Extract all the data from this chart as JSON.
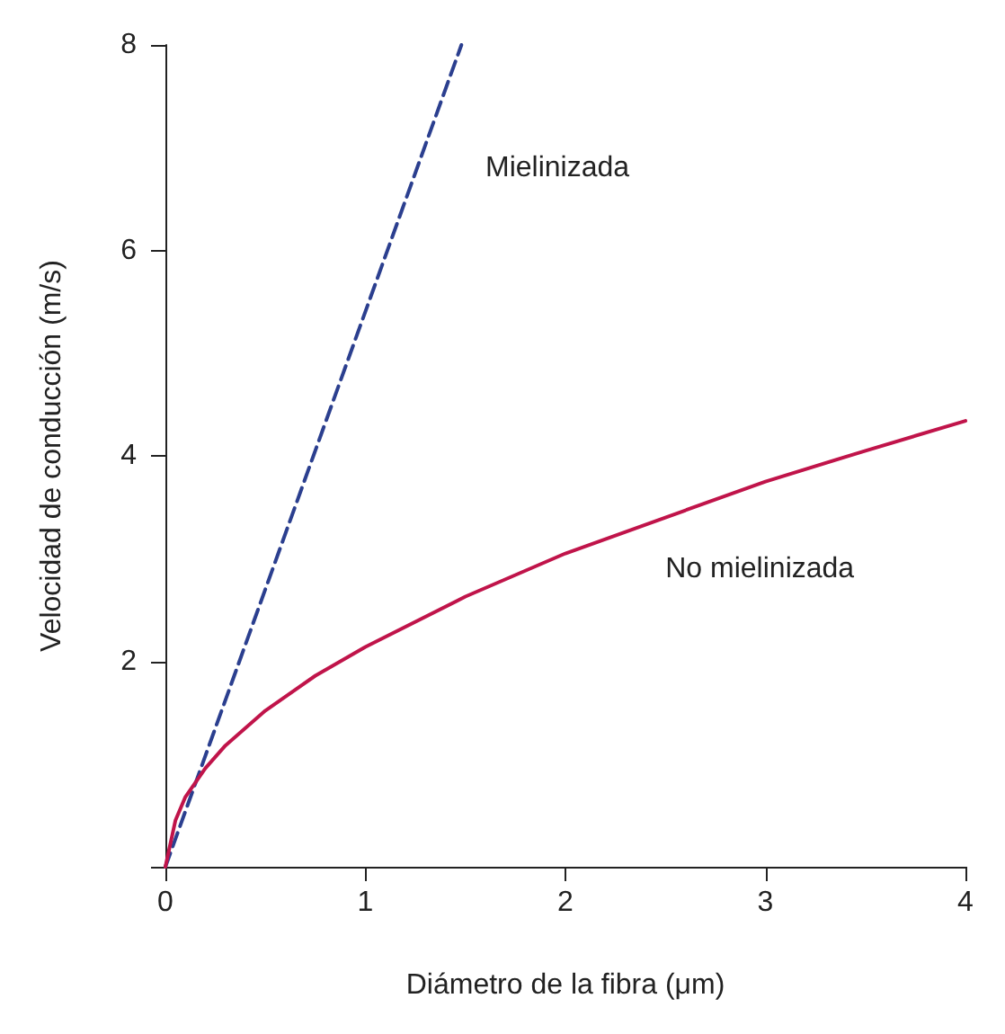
{
  "chart_data": {
    "type": "line",
    "xlabel": "Diámetro de la fibra (μm)",
    "ylabel": "Velocidad de conducción (m/s)",
    "xlim": [
      0,
      4
    ],
    "ylim": [
      0,
      8
    ],
    "xticks": [
      0,
      1,
      2,
      3,
      4
    ],
    "yticks": [
      {
        "value": 0,
        "label": null
      },
      2,
      4,
      6,
      8
    ],
    "grid": false,
    "legend": false,
    "marker": "none",
    "series": [
      {
        "name": "Mielinizada",
        "color": "#2b3f8f",
        "line_style": "dashed",
        "x": [
          0,
          1.48
        ],
        "values": [
          0,
          8
        ]
      },
      {
        "name": "No mielinizada",
        "color": "#c0144a",
        "line_style": "solid",
        "x": [
          0,
          0.05,
          0.1,
          0.2,
          0.3,
          0.5,
          0.75,
          1,
          1.5,
          2,
          2.5,
          3,
          3.5,
          4
        ],
        "values": [
          0,
          0.45,
          0.68,
          0.96,
          1.18,
          1.52,
          1.86,
          2.14,
          2.63,
          3.05,
          3.4,
          3.75,
          4.05,
          4.34
        ]
      }
    ]
  }
}
